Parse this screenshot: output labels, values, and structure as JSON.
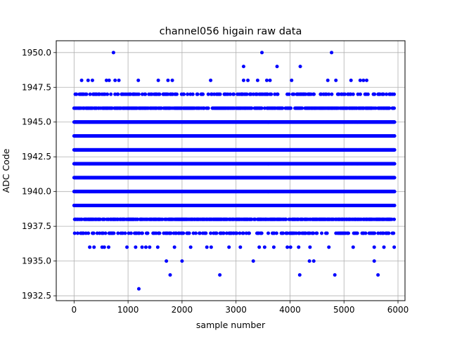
{
  "chart_data": {
    "type": "scatter",
    "title": "channel056 higain raw data",
    "xlabel": "sample number",
    "ylabel": "ADC Code",
    "xlim": [
      -330,
      6130
    ],
    "ylim": [
      1932.15,
      1950.85
    ],
    "xticks": [
      0,
      1000,
      2000,
      3000,
      4000,
      5000,
      6000
    ],
    "xtick_labels": [
      "0",
      "1000",
      "2000",
      "3000",
      "4000",
      "5000",
      "6000"
    ],
    "yticks": [
      1932.5,
      1935.0,
      1937.5,
      1940.0,
      1942.5,
      1945.0,
      1947.5,
      1950.0
    ],
    "ytick_labels": [
      "1932.5",
      "1935.0",
      "1937.5",
      "1940.0",
      "1942.5",
      "1945.0",
      "1947.5",
      "1950.0"
    ],
    "grid": true,
    "marker_color": "#0000ff",
    "x_range": [
      0,
      5935
    ],
    "dense_levels": [
      1937,
      1938,
      1939,
      1940,
      1941,
      1942,
      1943,
      1944,
      1945,
      1946,
      1947
    ],
    "solid_levels": [
      1939,
      1940,
      1941,
      1942,
      1943,
      1944,
      1945
    ],
    "points_1948": [
      [
        140,
        1948
      ],
      [
        260,
        1948
      ],
      [
        340,
        1948
      ],
      [
        600,
        1948
      ],
      [
        650,
        1948
      ],
      [
        760,
        1948
      ],
      [
        830,
        1948
      ],
      [
        1190,
        1948
      ],
      [
        1560,
        1948
      ],
      [
        1740,
        1948
      ],
      [
        1820,
        1948
      ],
      [
        2530,
        1948
      ],
      [
        3140,
        1948
      ],
      [
        3220,
        1948
      ],
      [
        3400,
        1948
      ],
      [
        3570,
        1948
      ],
      [
        3630,
        1948
      ],
      [
        4030,
        1948
      ],
      [
        4700,
        1948
      ],
      [
        4850,
        1948
      ],
      [
        5130,
        1948
      ],
      [
        5300,
        1948
      ],
      [
        5360,
        1948
      ],
      [
        5420,
        1948
      ]
    ],
    "points_1949": [
      [
        3140,
        1949
      ],
      [
        3760,
        1949
      ],
      [
        4190,
        1949
      ]
    ],
    "points_1950": [
      [
        730,
        1950
      ],
      [
        3480,
        1950
      ],
      [
        4770,
        1950
      ]
    ],
    "points_1936": [
      [
        290,
        1936
      ],
      [
        370,
        1936
      ],
      [
        520,
        1936
      ],
      [
        560,
        1936
      ],
      [
        640,
        1936
      ],
      [
        980,
        1936
      ],
      [
        1140,
        1936
      ],
      [
        1260,
        1936
      ],
      [
        1330,
        1936
      ],
      [
        1400,
        1936
      ],
      [
        1550,
        1936
      ],
      [
        1860,
        1936
      ],
      [
        2160,
        1936
      ],
      [
        2460,
        1936
      ],
      [
        2540,
        1936
      ],
      [
        2870,
        1936
      ],
      [
        3080,
        1936
      ],
      [
        3430,
        1936
      ],
      [
        3530,
        1936
      ],
      [
        3700,
        1936
      ],
      [
        3950,
        1936
      ],
      [
        4010,
        1936
      ],
      [
        4160,
        1936
      ],
      [
        4370,
        1936
      ],
      [
        4720,
        1936
      ],
      [
        5170,
        1936
      ],
      [
        5560,
        1936
      ],
      [
        5740,
        1936
      ],
      [
        5930,
        1936
      ]
    ],
    "points_1935": [
      [
        1710,
        1935
      ],
      [
        2000,
        1935
      ],
      [
        3320,
        1935
      ],
      [
        4360,
        1935
      ],
      [
        4440,
        1935
      ],
      [
        5560,
        1935
      ]
    ],
    "points_1934": [
      [
        1780,
        1934
      ],
      [
        2700,
        1934
      ],
      [
        4180,
        1934
      ],
      [
        4830,
        1934
      ],
      [
        5630,
        1934
      ]
    ],
    "points_1933": [
      [
        1200,
        1933
      ]
    ]
  }
}
